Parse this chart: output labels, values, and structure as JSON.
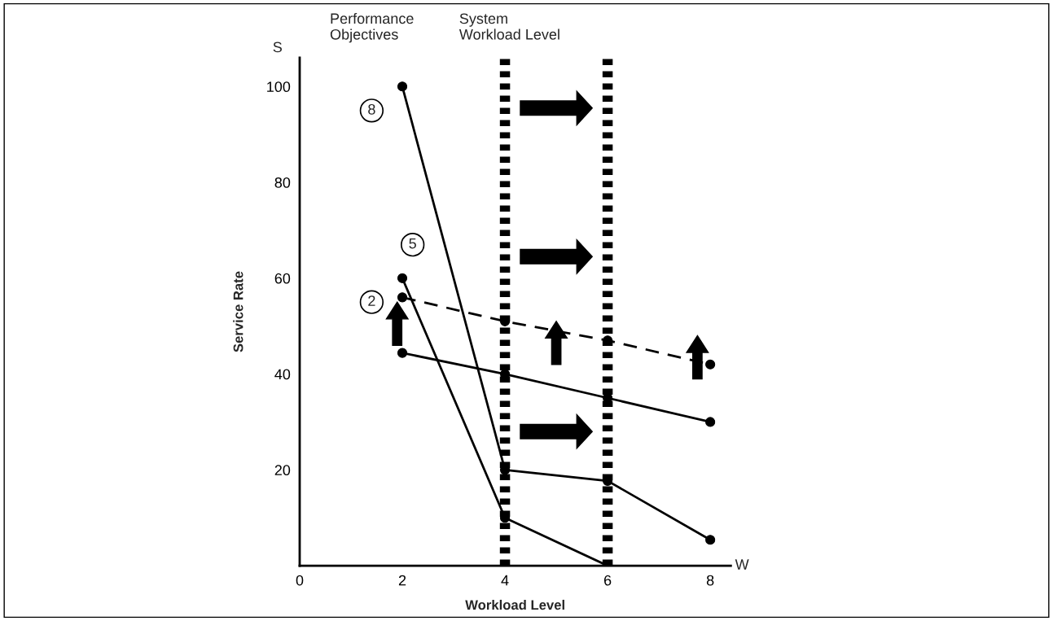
{
  "chart_data": {
    "type": "line",
    "xlabel": "Workload Level",
    "ylabel": "Service Rate",
    "x": [
      2,
      4,
      6,
      8
    ],
    "series": [
      {
        "color": "#000000",
        "values": [
          100,
          20,
          17.7,
          5.4
        ],
        "line_style": "solid"
      },
      {
        "color": "#000000",
        "values": [
          60,
          10,
          0,
          null
        ],
        "line_style": "solid"
      },
      {
        "color": "#000000",
        "values": [
          44.4,
          40,
          35,
          30
        ],
        "line_style": "solid"
      },
      {
        "color": "#000000",
        "values": [
          56,
          51,
          47,
          42
        ],
        "line_style": "dashed"
      }
    ],
    "marker": "circle",
    "xlim": [
      0,
      8.4
    ],
    "ylim": [
      0,
      106
    ],
    "xticks": [
      0,
      2,
      4,
      6,
      8
    ],
    "yticks": [
      20,
      40,
      60,
      80,
      100
    ],
    "grid": false,
    "legend": false,
    "ref_lines": [
      {
        "axis": "x",
        "value": 4,
        "line_style": "dotted",
        "color": "#000000"
      },
      {
        "axis": "x",
        "value": 6,
        "line_style": "dotted",
        "color": "#000000"
      }
    ],
    "annotations": [
      "8",
      "5",
      "2",
      "S",
      "W",
      "Performance Objectives",
      "System Workload Level"
    ]
  }
}
